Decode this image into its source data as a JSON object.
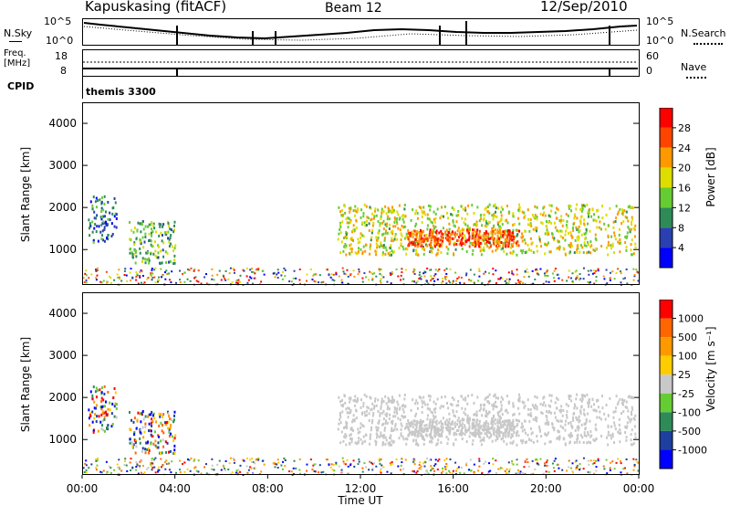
{
  "header": {
    "station": "Kapuskasing (fitACF)",
    "beam": "Beam 12",
    "date": "12/Sep/2010"
  },
  "top_panel": {
    "left_label": "N.Sky",
    "right_label": "N.Search",
    "ticks_left": [
      "10^5",
      "10^0"
    ],
    "ticks_right": [
      "10^5",
      "10^0"
    ]
  },
  "freq_panel": {
    "left_label_1": "Freq.",
    "left_label_2": "[MHz]",
    "right_label": "Nave",
    "ticks_left": [
      "18",
      "8"
    ],
    "ticks_right": [
      "60",
      "0"
    ]
  },
  "cpid": {
    "label": "CPID",
    "value": "themis 3300"
  },
  "power_panel": {
    "ylabel": "Slant Range [km]",
    "yticks": [
      "1000",
      "2000",
      "3000",
      "4000"
    ],
    "colorbar_label": "Power [dB]",
    "colorbar_ticks": [
      "4",
      "8",
      "12",
      "16",
      "20",
      "24",
      "28"
    ],
    "colorbar_colors": [
      "#0000ff",
      "#2a40b0",
      "#2e8b57",
      "#66cc33",
      "#dddd00",
      "#ff9900",
      "#ff4400",
      "#ff0000"
    ]
  },
  "velocity_panel": {
    "ylabel": "Slant Range [km]",
    "yticks": [
      "1000",
      "2000",
      "3000",
      "4000"
    ],
    "colorbar_label": "Velocity [m s⁻¹]",
    "colorbar_ticks": [
      "1000",
      "500",
      "100",
      "25",
      "-25",
      "-100",
      "-500",
      "-1000"
    ],
    "colorbar_colors": [
      "#0000ff",
      "#1e3fa0",
      "#2e8b57",
      "#66cc33",
      "#c8c8c8",
      "#ffcc00",
      "#ff9900",
      "#ff6600",
      "#ff0000"
    ]
  },
  "xaxis": {
    "label": "Time UT",
    "ticks": [
      "00:00",
      "04:00",
      "08:00",
      "12:00",
      "16:00",
      "20:00",
      "00:00"
    ]
  },
  "chart_data": {
    "type": "heatmap",
    "title": "Kapuskasing (fitACF)",
    "xlabel": "Time UT",
    "ylabel": "Slant Range [km]",
    "xlim": [
      "00:00",
      "24:00"
    ],
    "ylim": [
      180,
      4500
    ],
    "power_scale_db": [
      0,
      30
    ],
    "velocity_scale_ms": [
      -1000,
      1000
    ],
    "backscatter_regions": [
      {
        "time": [
          "00:15",
          "01:30"
        ],
        "range_km": [
          1200,
          2300
        ],
        "power_db": 10
      },
      {
        "time": [
          "02:00",
          "04:00"
        ],
        "range_km": [
          700,
          1700
        ],
        "power_db": 14
      },
      {
        "time": [
          "11:00",
          "23:50"
        ],
        "range_km": [
          900,
          2100
        ],
        "power_db": 18
      },
      {
        "time": [
          "14:00",
          "19:00"
        ],
        "range_km": [
          1100,
          1500
        ],
        "power_db": 26
      }
    ]
  }
}
